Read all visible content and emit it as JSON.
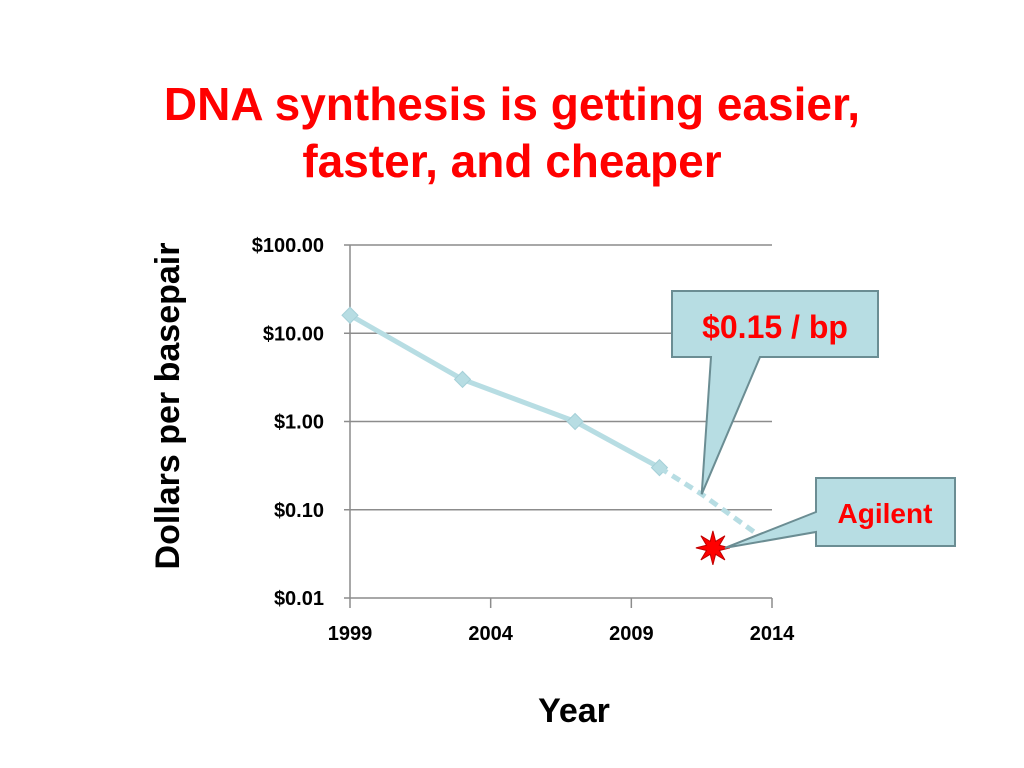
{
  "title": {
    "line1": "DNA synthesis is getting easier,",
    "line2": "faster, and cheaper"
  },
  "chart_data": {
    "type": "line",
    "xlabel": "Year",
    "ylabel": "Dollars per basepair",
    "x_ticks": [
      1999,
      2004,
      2009,
      2014
    ],
    "x_tick_labels": [
      "1999",
      "2004",
      "2009",
      "2014"
    ],
    "xlim": [
      1999,
      2014
    ],
    "y_scale": "log",
    "ylim": [
      0.01,
      100
    ],
    "y_ticks": [
      100,
      10,
      1,
      0.1,
      0.01
    ],
    "y_tick_labels": [
      "$100.00",
      "$10.00",
      "$1.00",
      "$0.10",
      "$0.01"
    ],
    "grid": "horizontal",
    "series": [
      {
        "points": [
          {
            "x": 1999,
            "y": 16
          },
          {
            "x": 2003,
            "y": 3
          },
          {
            "x": 2007,
            "y": 1
          },
          {
            "x": 2010,
            "y": 0.3
          }
        ],
        "color": "#b7dde3",
        "marker": "diamond"
      },
      {
        "style": "dashed",
        "points": [
          {
            "x": 2010,
            "y": 0.3
          },
          {
            "x": 2011.5,
            "y": 0.15
          },
          {
            "x": 2013.4,
            "y": 0.055
          }
        ],
        "color": "#b7dde3"
      },
      {
        "points": [
          {
            "x": 2011.9,
            "y": 0.037
          }
        ],
        "marker": "star",
        "color": "#ff0000"
      }
    ],
    "annotations": [
      {
        "text": "$0.15 / bp",
        "color": "#ff0000",
        "box_fill": "#b7dde3"
      },
      {
        "text": "Agilent",
        "color": "#ff0000",
        "box_fill": "#b7dde3"
      }
    ]
  }
}
